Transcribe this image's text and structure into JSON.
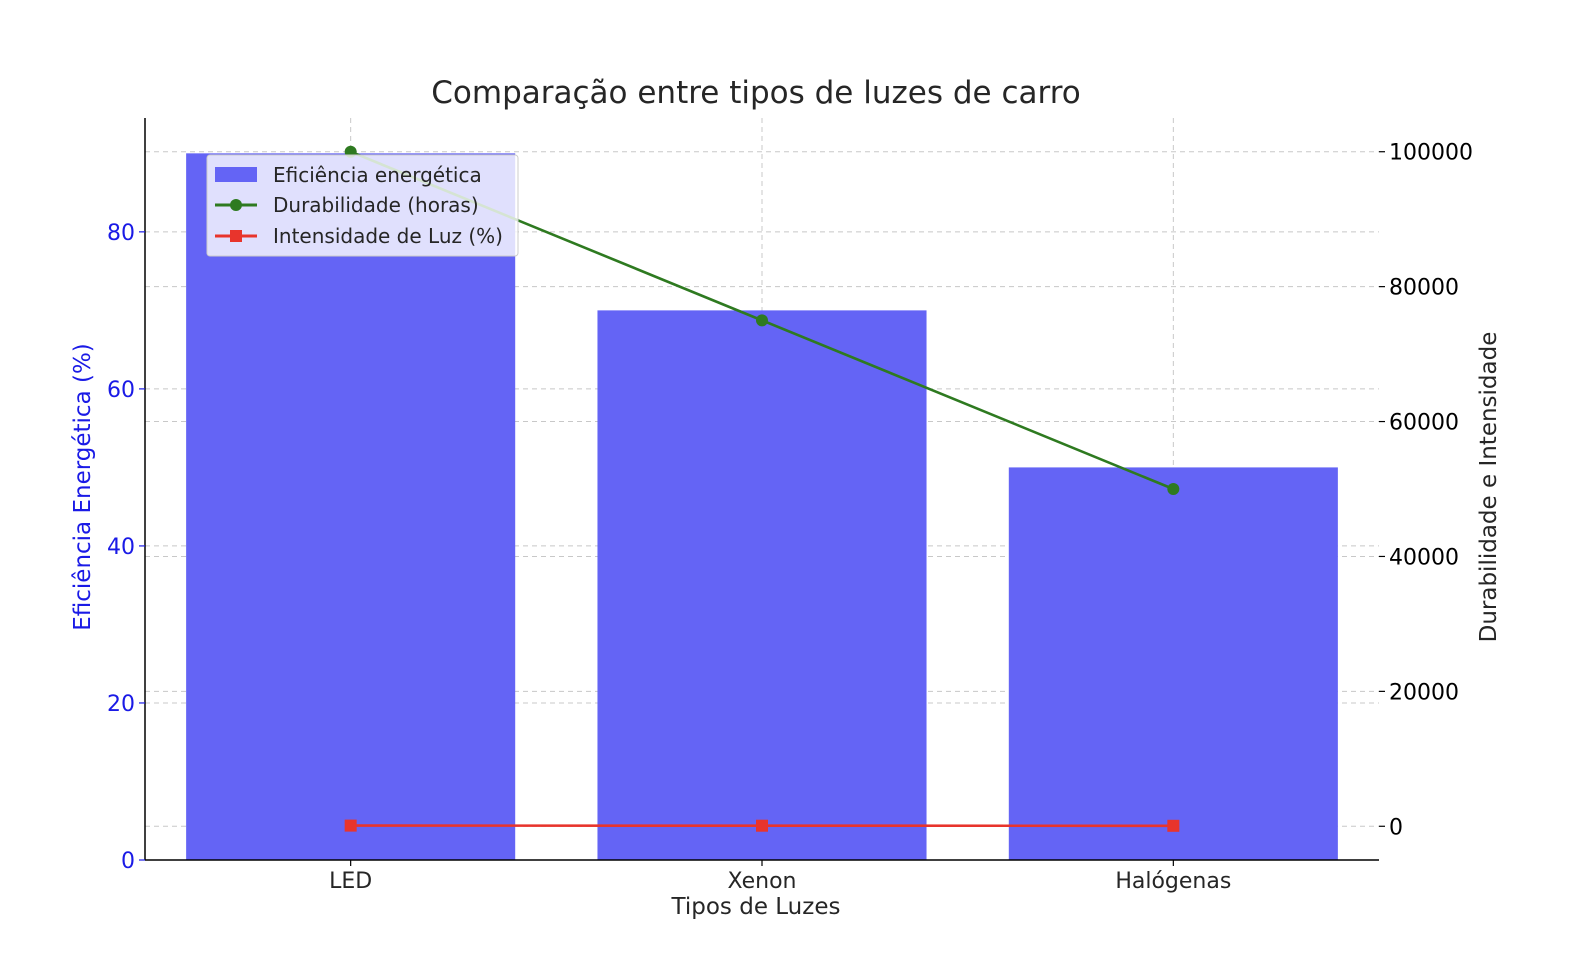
{
  "chart_data": {
    "type": "bar",
    "title": "Comparação entre tipos de luzes de carro",
    "xlabel": "Tipos de Luzes",
    "ylabel_left": "Eficiência Energética (%)",
    "ylabel_right": "Durabilidade e Intensidade",
    "categories": [
      "LED",
      "Xenon",
      "Halógenas"
    ],
    "ylim_left": [
      0,
      94.5
    ],
    "yticks_left": [
      0,
      20,
      40,
      60,
      80
    ],
    "ylim_right": [
      -5000,
      105000
    ],
    "yticks_right": [
      0,
      20000,
      40000,
      60000,
      80000,
      100000
    ],
    "grid": true,
    "legend_position": "upper-left",
    "series": [
      {
        "name": "Eficiência energética",
        "axis": "left",
        "kind": "bar",
        "values": [
          90,
          70,
          50
        ],
        "color": "#6464f5"
      },
      {
        "name": "Durabilidade (horas)",
        "axis": "right",
        "kind": "line",
        "marker": "circle",
        "values": [
          100000,
          75000,
          50000
        ],
        "color": "#2e7a20"
      },
      {
        "name": "Intensidade de Luz (%)",
        "axis": "right",
        "kind": "line",
        "marker": "square",
        "values": [
          100,
          85,
          70
        ],
        "color": "#e8342c"
      }
    ]
  }
}
